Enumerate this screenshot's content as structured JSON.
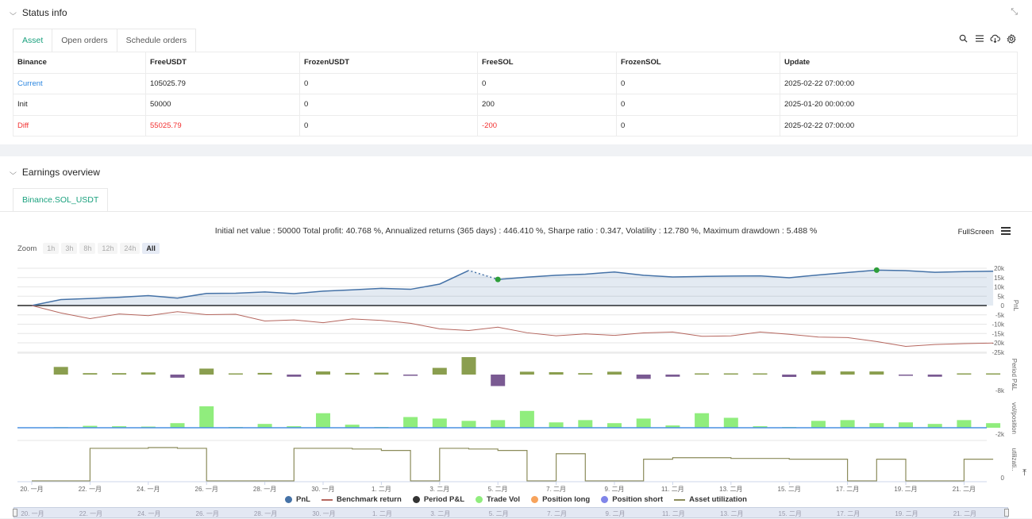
{
  "status": {
    "title": "Status info",
    "tabs": [
      "Asset",
      "Open orders",
      "Schedule orders"
    ],
    "table": {
      "headers": [
        "Binance",
        "FreeUSDT",
        "FrozenUSDT",
        "FreeSOL",
        "FrozenSOL",
        "Update"
      ],
      "rows": [
        [
          "Current",
          "105025.79",
          "0",
          "0",
          "0",
          "2025-02-22 07:00:00"
        ],
        [
          "Init",
          "50000",
          "0",
          "200",
          "0",
          "2025-01-20 00:00:00"
        ],
        [
          "Diff",
          "55025.79",
          "0",
          "-200",
          "0",
          "2025-02-22 07:00:00"
        ]
      ]
    }
  },
  "earnings": {
    "title": "Earnings overview",
    "tab": "Binance.SOL_USDT",
    "summary": "Initial net value : 50000 Total profit: 40.768 %, Annualized returns (365 days) : 446.410 %, Sharpe ratio : 0.347, Volatility : 12.780 %, Maximum drawdown : 5.488 %",
    "fullscreen_label": "FullScreen",
    "zoom": {
      "label": "Zoom",
      "options": [
        "1h",
        "3h",
        "8h",
        "12h",
        "24h",
        "All"
      ],
      "selected": "All"
    },
    "legend": [
      "PnL",
      "Benchmark return",
      "Period P&L",
      "Trade Vol",
      "Position long",
      "Position short",
      "Asset utilization"
    ]
  },
  "chart_data": {
    "type": "line",
    "x_ticks": [
      "20. 一月",
      "22. 一月",
      "24. 一月",
      "26. 一月",
      "28. 一月",
      "30. 一月",
      "1. 二月",
      "3. 二月",
      "5. 二月",
      "7. 二月",
      "9. 二月",
      "11. 二月",
      "13. 二月",
      "15. 二月",
      "17. 二月",
      "19. 二月",
      "21. 二月"
    ],
    "navigator_ticks": [
      "20. 一月",
      "22. 一月",
      "24. 一月",
      "26. 一月",
      "28. 一月",
      "30. 一月",
      "1. 二月",
      "3. 二月",
      "5. 二月",
      "7. 二月",
      "9. 二月",
      "11. 二月",
      "13. 二月",
      "15. 二月",
      "17. 二月",
      "19. 二月",
      "21. 二月"
    ],
    "pnl_axis": {
      "label": "PnL",
      "ticks": [
        "20k",
        "15k",
        "10k",
        "5k",
        "0",
        "-5k",
        "-10k",
        "-15k",
        "-20k",
        "-25k"
      ],
      "ylim": [
        -25000,
        20000
      ]
    },
    "period_axis": {
      "label": "Period P&L",
      "ticks": [
        "-8k"
      ]
    },
    "vol_axis": {
      "label": "vol/position",
      "ticks": [
        "-2k"
      ]
    },
    "util_axis": {
      "label": "utilizati..",
      "ticks": [
        "0"
      ]
    },
    "days": [
      0,
      1,
      2,
      3,
      4,
      5,
      6,
      7,
      8,
      9,
      10,
      11,
      12,
      13,
      14,
      15,
      16,
      17,
      18,
      19,
      20,
      21,
      22,
      23,
      24,
      25,
      26,
      27,
      28,
      29,
      30,
      31,
      32,
      33
    ],
    "pnl": [
      0,
      3200,
      3800,
      4400,
      5300,
      4000,
      6500,
      6600,
      7300,
      6400,
      7700,
      8400,
      9200,
      8700,
      11500,
      18800,
      14000,
      15200,
      16200,
      16800,
      18000,
      16200,
      15300,
      15600,
      15800,
      15900,
      14900,
      16400,
      17700,
      19000,
      18700,
      17800,
      18200,
      18400
    ],
    "benchmark": [
      0,
      -4000,
      -7000,
      -4500,
      -5400,
      -3300,
      -4900,
      -4700,
      -8300,
      -7700,
      -9200,
      -7200,
      -8000,
      -9500,
      -12500,
      -13400,
      -11600,
      -14600,
      -16200,
      -15200,
      -16000,
      -14700,
      -14200,
      -16500,
      -16300,
      -14200,
      -15400,
      -16900,
      -17200,
      -19300,
      -21900,
      -20900,
      -20400,
      -20100
    ],
    "period_pnl": [
      0,
      3200,
      600,
      600,
      900,
      -1300,
      2500,
      100,
      700,
      -900,
      1300,
      700,
      800,
      -500,
      2800,
      7300,
      -4800,
      1200,
      1000,
      600,
      1200,
      -1800,
      -900,
      300,
      200,
      100,
      -1000,
      1500,
      1300,
      1300,
      -300,
      -900,
      400,
      200
    ],
    "trade_vol": [
      0,
      80,
      250,
      200,
      150,
      600,
      2800,
      100,
      500,
      200,
      1900,
      400,
      100,
      1400,
      1200,
      900,
      1000,
      2200,
      700,
      1000,
      600,
      1200,
      300,
      1900,
      1300,
      200,
      100,
      900,
      1000,
      600,
      700,
      500,
      1000,
      600
    ],
    "utilization": [
      0,
      0,
      90,
      90,
      92,
      90,
      0,
      0,
      0,
      90,
      90,
      88,
      84,
      0,
      90,
      88,
      84,
      0,
      75,
      0,
      0,
      60,
      64,
      64,
      62,
      62,
      60,
      60,
      0,
      60,
      0,
      0,
      60,
      60
    ]
  }
}
